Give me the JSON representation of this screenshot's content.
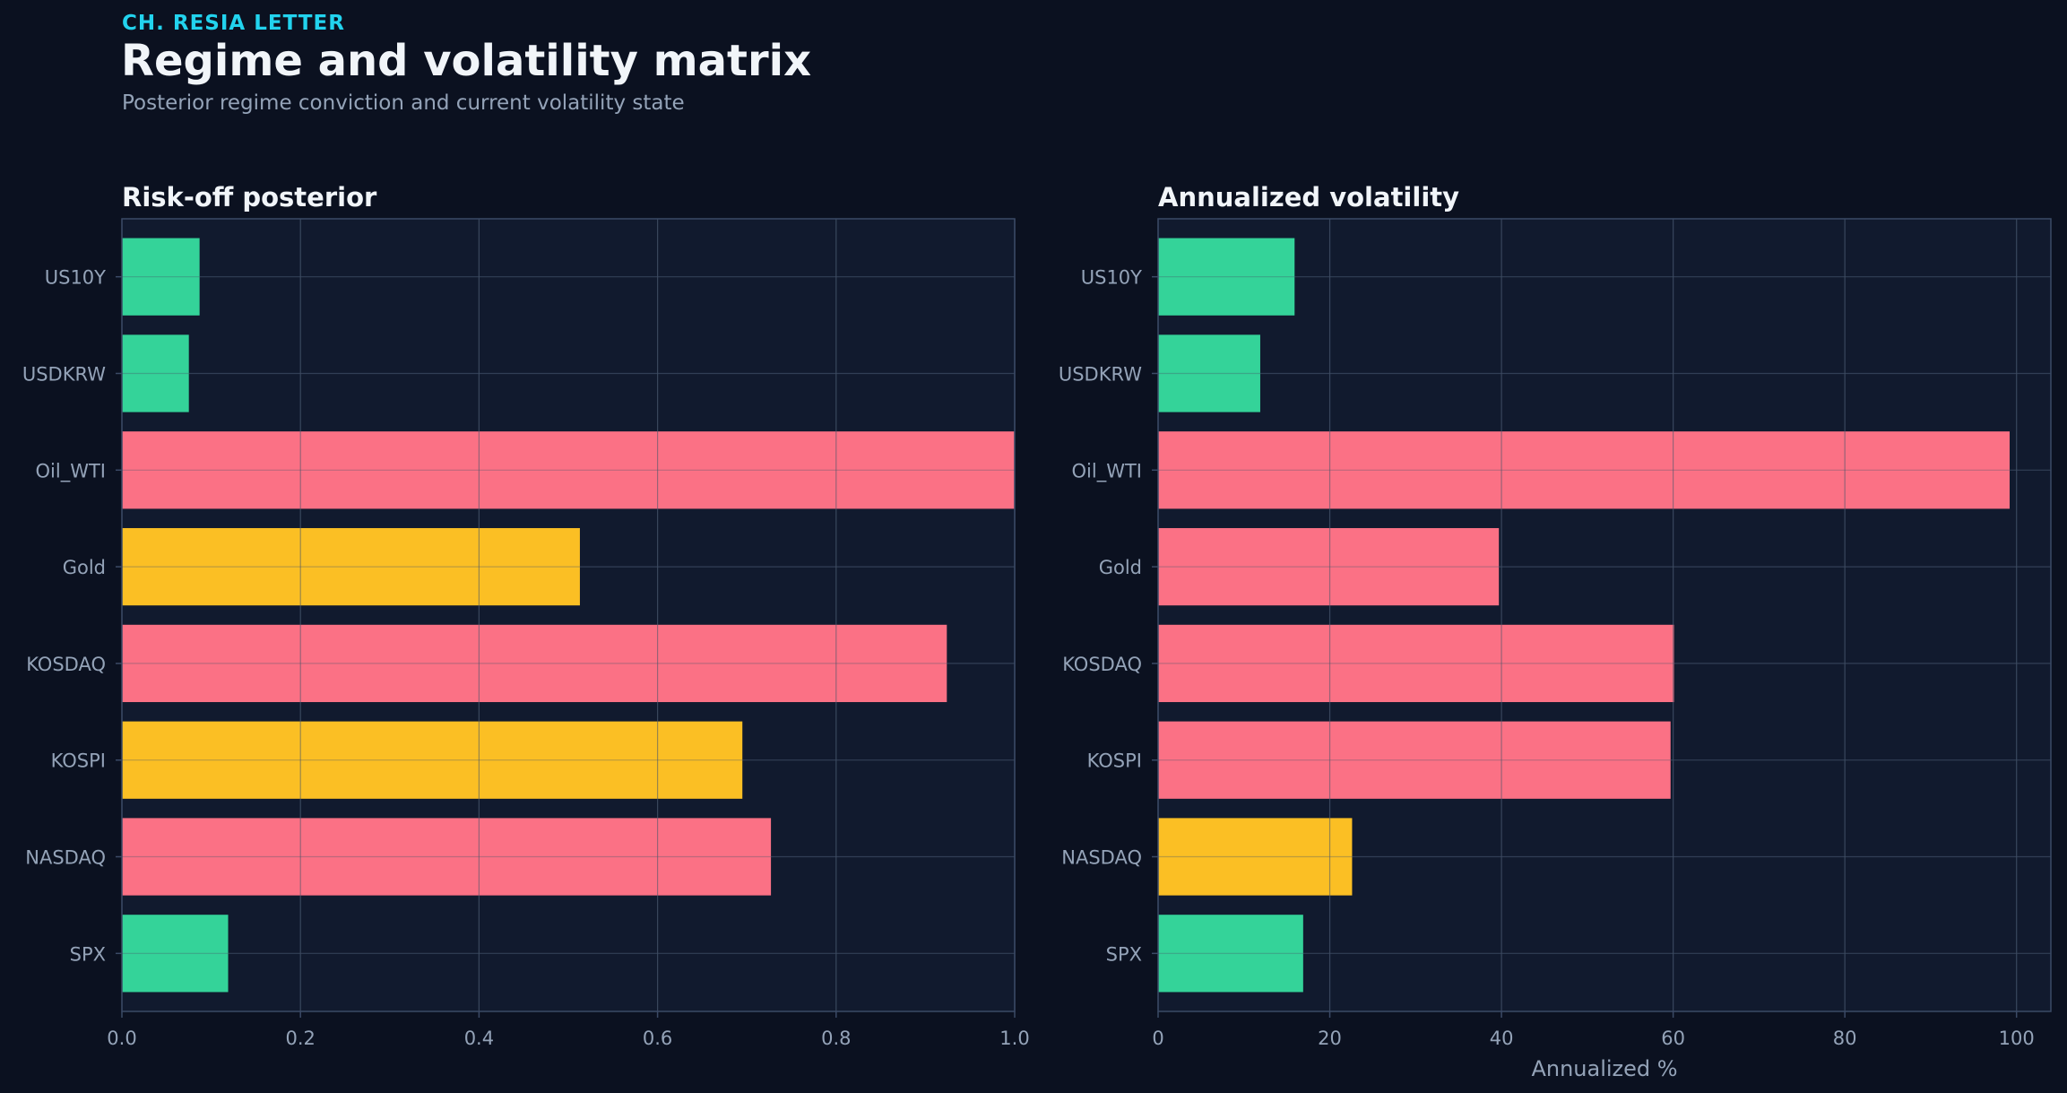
{
  "header": {
    "kicker": "CH. RESIA LETTER",
    "title": "Regime and volatility matrix",
    "subtitle": "Posterior regime conviction and current volatility state"
  },
  "colors": {
    "background": "#0b1120",
    "panel": "#111a2e",
    "grid": "#26324a",
    "axis": "#3b4a66",
    "green": "#34d399",
    "amber": "#fbbf24",
    "red": "#fb7185",
    "text_muted": "#94a3b8"
  },
  "chart_data": [
    {
      "type": "bar",
      "orientation": "horizontal",
      "title": "Risk-off posterior",
      "xlabel": "",
      "ylabel": "",
      "categories": [
        "US10Y",
        "USDKRW",
        "Oil_WTI",
        "Gold",
        "KOSDAQ",
        "KOSPI",
        "NASDAQ",
        "SPX"
      ],
      "values": [
        0.087,
        0.075,
        1.0,
        0.513,
        0.924,
        0.695,
        0.727,
        0.119
      ],
      "bar_colors": [
        "green",
        "green",
        "red",
        "amber",
        "red",
        "amber",
        "red",
        "green"
      ],
      "xlim": [
        0,
        1.0
      ],
      "xticks": [
        0,
        0.2,
        0.4,
        0.6,
        0.8,
        1.0
      ],
      "xtick_labels": [
        "0.0",
        "0.2",
        "0.4",
        "0.6",
        "0.8",
        "1.0"
      ],
      "grid": true
    },
    {
      "type": "bar",
      "orientation": "horizontal",
      "title": "Annualized volatility",
      "xlabel": "Annualized %",
      "ylabel": "",
      "categories": [
        "US10Y",
        "USDKRW",
        "Oil_WTI",
        "Gold",
        "KOSDAQ",
        "KOSPI",
        "NASDAQ",
        "SPX"
      ],
      "values": [
        15.9,
        11.9,
        99.2,
        39.7,
        60.1,
        59.7,
        22.6,
        16.9
      ],
      "bar_colors": [
        "green",
        "green",
        "red",
        "red",
        "red",
        "red",
        "amber",
        "green"
      ],
      "xlim": [
        0,
        104
      ],
      "xticks": [
        0,
        20,
        40,
        60,
        80,
        100
      ],
      "xtick_labels": [
        "0",
        "20",
        "40",
        "60",
        "80",
        "100"
      ],
      "grid": true
    }
  ]
}
